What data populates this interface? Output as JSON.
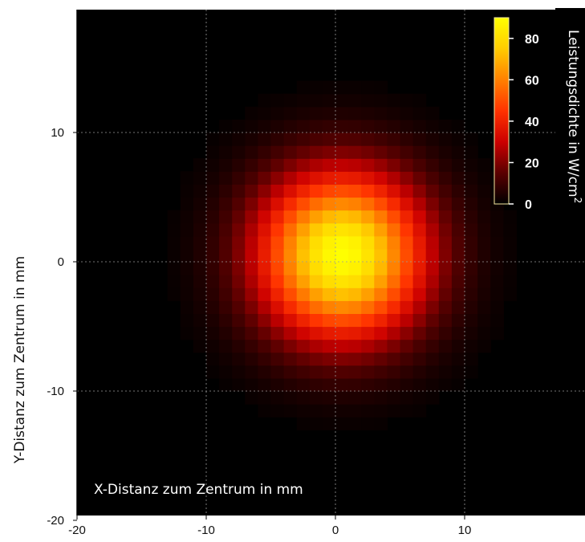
{
  "chart_data": {
    "type": "heatmap",
    "xlabel": "X-Distanz zum Zentrum in mm",
    "ylabel": "Y-Distanz zum Zentrum in mm",
    "xlim": [
      -20,
      19
    ],
    "ylim": [
      -20,
      19
    ],
    "x_ticks": [
      -20,
      -10,
      0,
      10
    ],
    "y_ticks": [
      -20,
      -10,
      0,
      10
    ],
    "grid": true,
    "colorbar": {
      "title": "Leistungsdichte in W/cm",
      "title_superscript": "2",
      "range": [
        0,
        90
      ],
      "ticks": [
        0,
        20,
        40,
        60,
        80
      ],
      "colors": [
        "#000000",
        "#5a0000",
        "#cc0000",
        "#ff3300",
        "#ff8000",
        "#ffcc00",
        "#ffff00"
      ]
    },
    "peak": {
      "x": 0.5,
      "y": 0.5,
      "value": 90
    },
    "beam_sigma_mm": {
      "x": 4.6,
      "y": 4.6
    },
    "grid_step_mm": 1
  }
}
